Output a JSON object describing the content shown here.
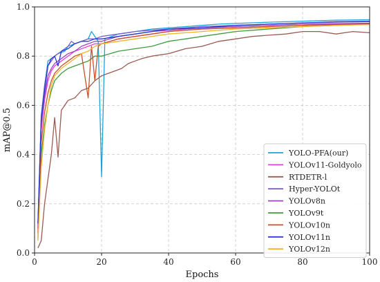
{
  "chart_data": {
    "type": "line",
    "title": "",
    "xlabel": "Epochs",
    "ylabel": "mAP@0.5",
    "xlim": [
      0,
      100
    ],
    "ylim": [
      0.0,
      1.0
    ],
    "xticks": [
      0,
      20,
      40,
      60,
      80,
      100
    ],
    "yticks": [
      0.0,
      0.2,
      0.4,
      0.6,
      0.8,
      1.0
    ],
    "xtick_labels": [
      "0",
      "20",
      "40",
      "60",
      "80",
      "100"
    ],
    "ytick_labels": [
      "0.0",
      "0.2",
      "0.4",
      "0.6",
      "0.8",
      "1.0"
    ],
    "grid": true,
    "legend_position": "lower-right",
    "series": [
      {
        "name": "YOLO-PFA(our)",
        "color": "#1ba3d8",
        "points": [
          [
            1,
            0.12
          ],
          [
            2,
            0.56
          ],
          [
            3,
            0.68
          ],
          [
            4,
            0.78
          ],
          [
            5,
            0.79
          ],
          [
            7,
            0.81
          ],
          [
            9,
            0.82
          ],
          [
            10,
            0.84
          ],
          [
            12,
            0.85
          ],
          [
            14,
            0.86
          ],
          [
            16,
            0.87
          ],
          [
            17,
            0.9
          ],
          [
            18,
            0.88
          ],
          [
            19,
            0.86
          ],
          [
            20,
            0.31
          ],
          [
            21,
            0.87
          ],
          [
            23,
            0.88
          ],
          [
            25,
            0.89
          ],
          [
            28,
            0.895
          ],
          [
            30,
            0.9
          ],
          [
            35,
            0.91
          ],
          [
            40,
            0.915
          ],
          [
            45,
            0.92
          ],
          [
            50,
            0.925
          ],
          [
            55,
            0.93
          ],
          [
            60,
            0.933
          ],
          [
            70,
            0.938
          ],
          [
            80,
            0.942
          ],
          [
            90,
            0.946
          ],
          [
            100,
            0.948
          ]
        ]
      },
      {
        "name": "YOLOv11-Goldyolo",
        "color": "#e242e2",
        "points": [
          [
            1,
            0.1
          ],
          [
            2,
            0.5
          ],
          [
            3,
            0.62
          ],
          [
            4,
            0.7
          ],
          [
            5,
            0.74
          ],
          [
            6,
            0.76
          ],
          [
            8,
            0.78
          ],
          [
            10,
            0.8
          ],
          [
            12,
            0.82
          ],
          [
            14,
            0.83
          ],
          [
            16,
            0.84
          ],
          [
            18,
            0.85
          ],
          [
            20,
            0.85
          ],
          [
            25,
            0.87
          ],
          [
            30,
            0.88
          ],
          [
            35,
            0.89
          ],
          [
            40,
            0.9
          ],
          [
            50,
            0.91
          ],
          [
            60,
            0.915
          ],
          [
            70,
            0.92
          ],
          [
            80,
            0.925
          ],
          [
            90,
            0.93
          ],
          [
            100,
            0.932
          ]
        ]
      },
      {
        "name": "RTDETR-l",
        "color": "#9a5a50",
        "points": [
          [
            1,
            0.02
          ],
          [
            2,
            0.05
          ],
          [
            3,
            0.2
          ],
          [
            4,
            0.3
          ],
          [
            5,
            0.4
          ],
          [
            6,
            0.55
          ],
          [
            7,
            0.39
          ],
          [
            8,
            0.58
          ],
          [
            9,
            0.6
          ],
          [
            10,
            0.62
          ],
          [
            12,
            0.63
          ],
          [
            14,
            0.66
          ],
          [
            16,
            0.67
          ],
          [
            18,
            0.7
          ],
          [
            20,
            0.72
          ],
          [
            22,
            0.73
          ],
          [
            24,
            0.74
          ],
          [
            26,
            0.75
          ],
          [
            28,
            0.77
          ],
          [
            30,
            0.78
          ],
          [
            32,
            0.79
          ],
          [
            35,
            0.8
          ],
          [
            40,
            0.81
          ],
          [
            45,
            0.83
          ],
          [
            50,
            0.84
          ],
          [
            55,
            0.86
          ],
          [
            60,
            0.87
          ],
          [
            65,
            0.88
          ],
          [
            70,
            0.885
          ],
          [
            75,
            0.89
          ],
          [
            80,
            0.9
          ],
          [
            85,
            0.9
          ],
          [
            90,
            0.89
          ],
          [
            95,
            0.9
          ],
          [
            100,
            0.895
          ]
        ]
      },
      {
        "name": "Hyper-YOLOt",
        "color": "#7b5ec8",
        "points": [
          [
            1,
            0.12
          ],
          [
            2,
            0.55
          ],
          [
            3,
            0.68
          ],
          [
            4,
            0.76
          ],
          [
            5,
            0.78
          ],
          [
            6,
            0.8
          ],
          [
            8,
            0.82
          ],
          [
            10,
            0.84
          ],
          [
            11,
            0.86
          ],
          [
            12,
            0.85
          ],
          [
            14,
            0.86
          ],
          [
            16,
            0.87
          ],
          [
            18,
            0.87
          ],
          [
            20,
            0.88
          ],
          [
            25,
            0.89
          ],
          [
            30,
            0.9
          ],
          [
            35,
            0.905
          ],
          [
            40,
            0.91
          ],
          [
            50,
            0.92
          ],
          [
            60,
            0.925
          ],
          [
            70,
            0.93
          ],
          [
            80,
            0.935
          ],
          [
            90,
            0.938
          ],
          [
            100,
            0.94
          ]
        ]
      },
      {
        "name": "YOLOv8n",
        "color": "#9b47b8",
        "points": [
          [
            1,
            0.1
          ],
          [
            2,
            0.52
          ],
          [
            3,
            0.64
          ],
          [
            4,
            0.72
          ],
          [
            5,
            0.75
          ],
          [
            6,
            0.77
          ],
          [
            8,
            0.79
          ],
          [
            10,
            0.81
          ],
          [
            12,
            0.82
          ],
          [
            14,
            0.84
          ],
          [
            16,
            0.85
          ],
          [
            18,
            0.86
          ],
          [
            20,
            0.86
          ],
          [
            25,
            0.88
          ],
          [
            30,
            0.89
          ],
          [
            35,
            0.9
          ],
          [
            40,
            0.905
          ],
          [
            50,
            0.915
          ],
          [
            60,
            0.92
          ],
          [
            70,
            0.925
          ],
          [
            80,
            0.93
          ],
          [
            90,
            0.932
          ],
          [
            100,
            0.934
          ]
        ]
      },
      {
        "name": "YOLOv9t",
        "color": "#3e9a3e",
        "points": [
          [
            1,
            0.06
          ],
          [
            2,
            0.4
          ],
          [
            3,
            0.52
          ],
          [
            4,
            0.6
          ],
          [
            5,
            0.66
          ],
          [
            6,
            0.7
          ],
          [
            8,
            0.73
          ],
          [
            10,
            0.75
          ],
          [
            12,
            0.76
          ],
          [
            14,
            0.77
          ],
          [
            16,
            0.78
          ],
          [
            18,
            0.8
          ],
          [
            20,
            0.8
          ],
          [
            25,
            0.82
          ],
          [
            30,
            0.83
          ],
          [
            35,
            0.84
          ],
          [
            40,
            0.86
          ],
          [
            45,
            0.87
          ],
          [
            50,
            0.88
          ],
          [
            55,
            0.89
          ],
          [
            60,
            0.9
          ],
          [
            70,
            0.91
          ],
          [
            80,
            0.92
          ],
          [
            90,
            0.925
          ],
          [
            100,
            0.93
          ]
        ]
      },
      {
        "name": "YOLOv10n",
        "color": "#c8502a",
        "points": [
          [
            1,
            0.08
          ],
          [
            2,
            0.45
          ],
          [
            3,
            0.57
          ],
          [
            4,
            0.65
          ],
          [
            5,
            0.7
          ],
          [
            6,
            0.73
          ],
          [
            8,
            0.76
          ],
          [
            10,
            0.78
          ],
          [
            12,
            0.8
          ],
          [
            14,
            0.81
          ],
          [
            16,
            0.63
          ],
          [
            17,
            0.84
          ],
          [
            18,
            0.7
          ],
          [
            19,
            0.84
          ],
          [
            20,
            0.85
          ],
          [
            25,
            0.87
          ],
          [
            30,
            0.88
          ],
          [
            35,
            0.89
          ],
          [
            40,
            0.9
          ],
          [
            50,
            0.91
          ],
          [
            60,
            0.915
          ],
          [
            70,
            0.92
          ],
          [
            80,
            0.925
          ],
          [
            90,
            0.928
          ],
          [
            100,
            0.93
          ]
        ]
      },
      {
        "name": "YOLOv11n",
        "color": "#2a3ad6",
        "points": [
          [
            1,
            0.12
          ],
          [
            2,
            0.55
          ],
          [
            3,
            0.66
          ],
          [
            4,
            0.76
          ],
          [
            5,
            0.79
          ],
          [
            6,
            0.8
          ],
          [
            7,
            0.76
          ],
          [
            8,
            0.82
          ],
          [
            10,
            0.83
          ],
          [
            12,
            0.85
          ],
          [
            14,
            0.86
          ],
          [
            16,
            0.86
          ],
          [
            18,
            0.87
          ],
          [
            20,
            0.87
          ],
          [
            25,
            0.88
          ],
          [
            30,
            0.89
          ],
          [
            35,
            0.9
          ],
          [
            40,
            0.91
          ],
          [
            50,
            0.915
          ],
          [
            60,
            0.925
          ],
          [
            70,
            0.93
          ],
          [
            80,
            0.935
          ],
          [
            90,
            0.94
          ],
          [
            100,
            0.942
          ]
        ]
      },
      {
        "name": "YOLOv12n",
        "color": "#f0b428",
        "points": [
          [
            1,
            0.05
          ],
          [
            2,
            0.35
          ],
          [
            3,
            0.5
          ],
          [
            4,
            0.6
          ],
          [
            5,
            0.68
          ],
          [
            6,
            0.72
          ],
          [
            8,
            0.75
          ],
          [
            10,
            0.77
          ],
          [
            12,
            0.79
          ],
          [
            14,
            0.81
          ],
          [
            16,
            0.82
          ],
          [
            18,
            0.84
          ],
          [
            20,
            0.85
          ],
          [
            25,
            0.86
          ],
          [
            30,
            0.87
          ],
          [
            35,
            0.88
          ],
          [
            40,
            0.89
          ],
          [
            50,
            0.9
          ],
          [
            60,
            0.91
          ],
          [
            70,
            0.915
          ],
          [
            80,
            0.92
          ],
          [
            90,
            0.925
          ],
          [
            100,
            0.928
          ]
        ]
      }
    ]
  }
}
